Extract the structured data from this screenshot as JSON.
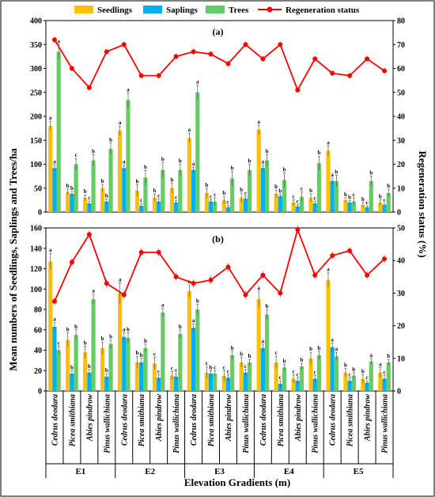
{
  "chart_data": [
    {
      "type": "bar",
      "panel_label": "(a)",
      "categories": [
        "Cedrus deodara",
        "Picea smithiana",
        "Abies pindrow",
        "Pinus wallichiana",
        "Cedrus deodara",
        "Picea smithiana",
        "Abies pindrow",
        "Pinus wallichiana",
        "Cedrus deodara",
        "Picea smithiana",
        "Abies pindrow",
        "Pinus wallichiana",
        "Cedrus deodara",
        "Picea smithiana",
        "Abies pindrow",
        "Pinus wallichiana",
        "Cedrus deodara",
        "Picea smithiana",
        "Abies pindrow",
        "Pinus wallichiana"
      ],
      "groups": [
        "E1",
        "E2",
        "E3",
        "E4",
        "E5"
      ],
      "ylim": [
        0,
        400
      ],
      "y2lim": [
        0,
        80
      ],
      "yticks": [
        0,
        50,
        100,
        150,
        200,
        250,
        300,
        350,
        400
      ],
      "y2ticks": [
        0,
        10,
        20,
        30,
        40,
        50,
        60,
        70,
        80
      ],
      "series": [
        {
          "name": "Seedlings",
          "color": "#FFC000",
          "values": [
            180,
            42,
            30,
            50,
            170,
            45,
            30,
            50,
            155,
            40,
            25,
            30,
            172,
            38,
            20,
            30,
            128,
            25,
            15,
            20
          ],
          "errors": [
            10,
            6,
            6,
            8,
            10,
            12,
            8,
            10,
            10,
            10,
            8,
            10,
            10,
            8,
            6,
            8,
            10,
            5,
            5,
            6
          ],
          "labels": [
            "a",
            "b",
            "b",
            "b",
            "a",
            "b",
            "b",
            "b",
            "a",
            "b",
            "b",
            "b",
            "a",
            "b",
            "c",
            "b",
            "a",
            "b",
            "b",
            "b"
          ]
        },
        {
          "name": "Saplings",
          "color": "#00B0F0",
          "values": [
            92,
            38,
            18,
            22,
            92,
            13,
            22,
            20,
            88,
            22,
            10,
            28,
            92,
            33,
            12,
            18,
            65,
            20,
            10,
            15
          ],
          "errors": [
            6,
            5,
            5,
            5,
            6,
            5,
            5,
            4,
            6,
            4,
            4,
            4,
            6,
            4,
            4,
            4,
            6,
            4,
            3,
            3
          ],
          "labels": [
            "a",
            "b",
            "c",
            "b",
            "a",
            "c",
            "c",
            "c",
            "a",
            "c",
            "c",
            "c",
            "a",
            "b",
            "c",
            "c",
            "a",
            "b",
            "c",
            "c"
          ]
        },
        {
          "name": "Trees",
          "color": "#66CC66",
          "values": [
            335,
            100,
            108,
            132,
            234,
            72,
            88,
            88,
            250,
            22,
            70,
            88,
            108,
            67,
            32,
            102,
            65,
            22,
            65,
            40
          ],
          "errors": [
            15,
            12,
            12,
            12,
            15,
            15,
            15,
            12,
            15,
            8,
            15,
            12,
            12,
            15,
            10,
            15,
            12,
            8,
            10,
            8
          ],
          "labels": [
            "a",
            "c",
            "b",
            "b",
            "a",
            "b",
            "b",
            "b",
            "a",
            "c",
            "b",
            "b",
            "b",
            "b",
            "c",
            "b",
            "b",
            "c",
            "b",
            "b"
          ]
        }
      ],
      "regeneration_status": {
        "name": "Regeneration status",
        "color": "#FF0000",
        "values": [
          72,
          60,
          52,
          67,
          70,
          57,
          57,
          65,
          67,
          66,
          62,
          70,
          64,
          70,
          51,
          64,
          58,
          57,
          64,
          59
        ],
        "errors": [
          1.2,
          1.2,
          1.2,
          1.2,
          1.2,
          1.2,
          1.2,
          1.2,
          1.2,
          1.2,
          1.2,
          1.2,
          1.2,
          1.2,
          1.2,
          1.2,
          1.2,
          1.2,
          1.2,
          1.2
        ]
      }
    },
    {
      "type": "bar",
      "panel_label": "(b)",
      "categories": [
        "Cedrus deodara",
        "Picea smithiana",
        "Abies pindrow",
        "Pinus wallichiana",
        "Cedrus deodara",
        "Picea smithiana",
        "Abies pindrow",
        "Pinus wallichiana",
        "Cedrus deodara",
        "Picea smithiana",
        "Abies pindrow",
        "Pinus wallichiana",
        "Cedrus deodara",
        "Picea smithiana",
        "Abies pindrow",
        "Pinus wallichiana",
        "Cedrus deodara",
        "Picea smithiana",
        "Abies pindrow",
        "Pinus wallichiana"
      ],
      "groups": [
        "E1",
        "E2",
        "E3",
        "E4",
        "E5"
      ],
      "ylim": [
        0,
        160
      ],
      "y2lim": [
        0,
        50
      ],
      "yticks": [
        0,
        20,
        40,
        60,
        80,
        100,
        120,
        140,
        160
      ],
      "y2ticks": [
        0,
        10,
        20,
        30,
        40,
        50
      ],
      "series": [
        {
          "name": "Seedlings",
          "color": "#FFC000",
          "values": [
            127,
            50,
            38,
            42,
            96,
            28,
            27,
            15,
            98,
            18,
            15,
            28,
            90,
            28,
            12,
            32,
            109,
            18,
            12,
            18
          ],
          "errors": [
            8,
            7,
            6,
            6,
            10,
            6,
            6,
            4,
            6,
            6,
            5,
            5,
            8,
            6,
            4,
            6,
            7,
            4,
            4,
            5
          ],
          "labels": [
            "a",
            "b",
            "b",
            "b",
            "a",
            "b",
            "c",
            "c",
            "a",
            "c",
            "c",
            "b",
            "a",
            "c",
            "c",
            "b",
            "a",
            "b",
            "b",
            "a"
          ]
        },
        {
          "name": "Saplings",
          "color": "#00B0F0",
          "values": [
            63,
            17,
            18,
            14,
            53,
            28,
            13,
            14,
            62,
            17,
            13,
            18,
            42,
            7,
            10,
            12,
            43,
            10,
            8,
            12
          ],
          "errors": [
            4,
            3,
            3,
            3,
            4,
            4,
            3,
            3,
            4,
            3,
            3,
            3,
            4,
            3,
            3,
            3,
            4,
            3,
            2,
            3
          ],
          "labels": [
            "a",
            "b",
            "b",
            "b",
            "a",
            "b",
            "c",
            "c",
            "a",
            "b",
            "c",
            "c",
            "a",
            "c",
            "c",
            "c",
            "a",
            "c",
            "c",
            "c"
          ]
        },
        {
          "name": "Trees",
          "color": "#66CC66",
          "values": [
            40,
            55,
            90,
            46,
            52,
            42,
            77,
            56,
            80,
            17,
            35,
            28,
            75,
            23,
            24,
            35,
            34,
            15,
            29,
            28
          ],
          "errors": [
            4,
            5,
            5,
            4,
            5,
            4,
            4,
            4,
            5,
            3,
            4,
            3,
            5,
            3,
            3,
            4,
            4,
            3,
            3,
            3
          ],
          "labels": [
            "c",
            "b",
            "a",
            "b",
            "b",
            "b",
            "a",
            "b",
            "b",
            "c",
            "b",
            "b",
            "b",
            "b",
            "b",
            "b",
            "a",
            "b",
            "a",
            "b"
          ]
        }
      ],
      "regeneration_status": {
        "name": "Regeneration status",
        "color": "#FF0000",
        "values": [
          27.5,
          39.5,
          48,
          33,
          29.5,
          42.5,
          42.5,
          35,
          33,
          34,
          38,
          29.5,
          35.5,
          30,
          49.5,
          35.5,
          41.5,
          43,
          35.5,
          40.5
        ],
        "errors": [
          1.2,
          1.2,
          1.2,
          1.2,
          1.2,
          1.2,
          1.2,
          1.2,
          1.2,
          1.2,
          1.2,
          1.2,
          1.2,
          1.2,
          1.2,
          1.2,
          1.2,
          1.2,
          1.2,
          1.2
        ]
      }
    }
  ],
  "legend": [
    "Seedlings",
    "Saplings",
    "Trees",
    "Regeneration status"
  ],
  "ylabel": "Mean numbers of Seedlings, Saplings and Trees/ha",
  "y2label": "Regeneration status (%)",
  "xlabel": "Elevation Gradients (m)"
}
